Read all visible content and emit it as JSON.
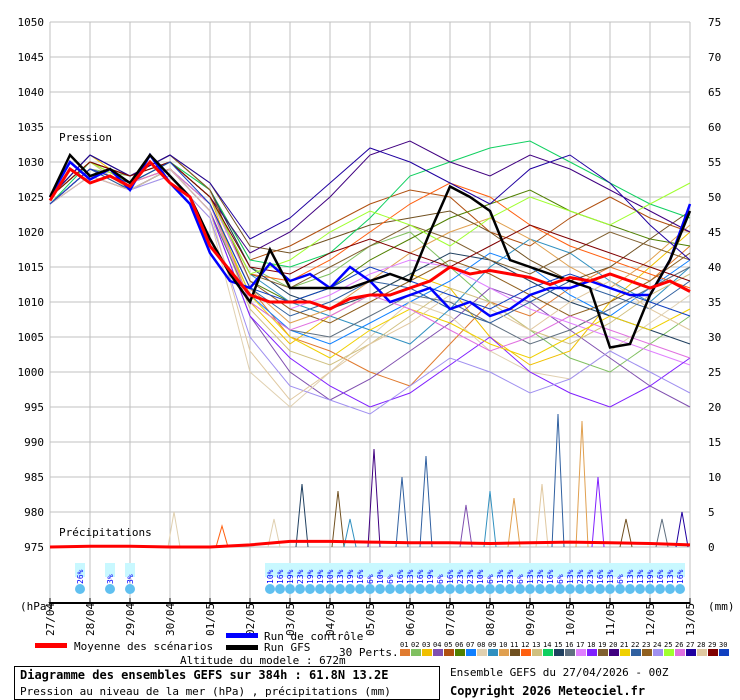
{
  "chart_data": {
    "type": "line",
    "title": "Diagramme des ensembles GEFS sur 384h : 61.8N 13.2E",
    "subtitle": "Pression au niveau de la mer (hPa) , précipitations (mm)",
    "run_label": "Ensemble GEFS du 27/04/2026 - 00Z",
    "copyright": "Copyright 2026 Meteociel.fr",
    "altitude": "Altitude du modele : 672m",
    "ylabel_left": "(hPa)",
    "ylabel_right": "(mm)",
    "label_pressure": "Pression",
    "label_precip": "Précipitations",
    "ylim_left": [
      975,
      1050
    ],
    "ylim_right": [
      0,
      75
    ],
    "left_ticks": [
      1050,
      1045,
      1040,
      1035,
      1030,
      1025,
      1020,
      1015,
      1010,
      1005,
      1000,
      995,
      990,
      985,
      980,
      975
    ],
    "right_ticks": [
      75,
      70,
      65,
      60,
      55,
      50,
      45,
      40,
      35,
      30,
      25,
      20,
      15,
      10,
      5,
      0
    ],
    "x_dates": [
      "27/04",
      "28/04",
      "29/04",
      "30/04",
      "01/05",
      "02/05",
      "03/05",
      "04/05",
      "05/05",
      "06/05",
      "07/05",
      "08/05",
      "09/05",
      "10/05",
      "11/05",
      "12/05",
      "13/05"
    ],
    "legend": {
      "mean": "Moyenne des scénarios",
      "control": "Run de contrôle",
      "gfs": "Run GFS",
      "perts": "30 Perts."
    },
    "colors": {
      "mean": "#ff0000",
      "control": "#0000ff",
      "gfs": "#000000"
    },
    "mean_12h": [
      1024.5,
      1029,
      1027,
      1028,
      1026.5,
      1030,
      1027,
      1025,
      1018,
      1014.5,
      1011,
      1010,
      1010,
      1010,
      1009,
      1010.5,
      1011,
      1011,
      1012,
      1013,
      1015,
      1014,
      1014.5,
      1014,
      1013.5,
      1012.5,
      1013.5,
      1013,
      1014,
      1013,
      1012,
      1013,
      1011.5
    ],
    "control_12h": [
      1025,
      1030,
      1027.5,
      1029,
      1026,
      1031,
      1027,
      1024,
      1017,
      1013,
      1012,
      1015.5,
      1013,
      1014,
      1012,
      1015,
      1013,
      1010,
      1011,
      1012,
      1009,
      1010,
      1008,
      1009,
      1011,
      1012,
      1012,
      1013,
      1012,
      1011,
      1011,
      1016,
      1024
    ],
    "gfs_12h": [
      1025,
      1031,
      1028,
      1029,
      1027,
      1031,
      1028,
      1025,
      1019,
      1014,
      1010,
      1017.5,
      1012,
      1012,
      1012,
      1012,
      1013,
      1014,
      1013,
      1020,
      1026.5,
      1025,
      1023,
      1016,
      1015,
      1014,
      1013,
      1012,
      1003.5,
      1004,
      1011,
      1016,
      1023
    ],
    "pert_colors": [
      "#e07b30",
      "#80c060",
      "#f0c000",
      "#8050b0",
      "#b05010",
      "#508000",
      "#1080ff",
      "#e0d0b0",
      "#3090c0",
      "#e0a050",
      "#705020",
      "#ff6010",
      "#d0c080",
      "#10d060",
      "#204060",
      "#607080",
      "#e080ff",
      "#8020ff",
      "#806030",
      "#400080",
      "#f0d000",
      "#3060a0",
      "#906020",
      "#a090f0",
      "#a0ff30",
      "#e070e0",
      "#2000a0",
      "#e0c8a0",
      "#800000",
      "#1040c0"
    ],
    "pert_ids": [
      "01",
      "02",
      "03",
      "04",
      "05",
      "06",
      "07",
      "08",
      "09",
      "10",
      "11",
      "12",
      "13",
      "14",
      "15",
      "16",
      "17",
      "18",
      "19",
      "20",
      "21",
      "22",
      "23",
      "24",
      "25",
      "26",
      "27",
      "28",
      "29",
      "30"
    ],
    "perts_24h": [
      [
        1025,
        1030,
        1027,
        1029,
        1024,
        1012,
        1005,
        1003,
        1000,
        998,
        1004,
        1010,
        1008,
        1012,
        1015,
        1013,
        1018
      ],
      [
        1024,
        1029,
        1028,
        1030,
        1026,
        1015,
        1012,
        1014,
        1018,
        1020,
        1015,
        1010,
        1006,
        1002,
        1000,
        1004,
        1008
      ],
      [
        1025,
        1031,
        1027,
        1030,
        1025,
        1010,
        1004,
        1008,
        1011,
        1014,
        1012,
        1005,
        1001,
        1003,
        1010,
        1015,
        1020
      ],
      [
        1024,
        1028,
        1026,
        1029,
        1023,
        1008,
        1000,
        996,
        999,
        1003,
        1007,
        1012,
        1010,
        1006,
        1002,
        998,
        995
      ],
      [
        1025,
        1030,
        1028,
        1031,
        1026,
        1016,
        1018,
        1021,
        1024,
        1026,
        1025,
        1020,
        1018,
        1022,
        1025,
        1022,
        1020
      ],
      [
        1024,
        1029,
        1027,
        1030,
        1025,
        1013,
        1010,
        1012,
        1016,
        1019,
        1022,
        1024,
        1026,
        1023,
        1021,
        1019,
        1018
      ],
      [
        1025,
        1030,
        1027,
        1029,
        1024,
        1011,
        1006,
        1004,
        1007,
        1010,
        1013,
        1017,
        1015,
        1011,
        1008,
        1012,
        1016
      ],
      [
        1024,
        1028,
        1026,
        1028,
        1022,
        1000,
        995,
        1000,
        1005,
        1010,
        1008,
        1003,
        1000,
        999,
        1003,
        1007,
        1011
      ],
      [
        1025,
        1031,
        1028,
        1030,
        1025,
        1014,
        1010,
        1008,
        1006,
        1004,
        1009,
        1015,
        1019,
        1017,
        1013,
        1010,
        1015
      ],
      [
        1024,
        1029,
        1027,
        1029,
        1024,
        1012,
        1007,
        1009,
        1013,
        1017,
        1020,
        1022,
        1019,
        1015,
        1012,
        1016,
        1021
      ],
      [
        1025,
        1030,
        1028,
        1031,
        1027,
        1018,
        1017,
        1019,
        1021,
        1022,
        1023,
        1020,
        1016,
        1013,
        1015,
        1019,
        1023
      ],
      [
        1024,
        1029,
        1027,
        1030,
        1025,
        1014,
        1013,
        1016,
        1020,
        1024,
        1027,
        1025,
        1021,
        1018,
        1016,
        1014,
        1012
      ],
      [
        1025,
        1030,
        1026,
        1029,
        1024,
        1009,
        1003,
        1001,
        1004,
        1008,
        1012,
        1010,
        1006,
        1004,
        1007,
        1011,
        1014
      ],
      [
        1024,
        1030,
        1027,
        1030,
        1026,
        1016,
        1015,
        1017,
        1022,
        1028,
        1030,
        1032,
        1033,
        1030,
        1027,
        1024,
        1022
      ],
      [
        1025,
        1031,
        1028,
        1031,
        1026,
        1015,
        1011,
        1009,
        1011,
        1014,
        1017,
        1016,
        1013,
        1010,
        1008,
        1006,
        1004
      ],
      [
        1024,
        1029,
        1026,
        1029,
        1023,
        1010,
        1006,
        1005,
        1008,
        1011,
        1010,
        1007,
        1004,
        1006,
        1009,
        1012,
        1015
      ],
      [
        1025,
        1030,
        1027,
        1030,
        1025,
        1013,
        1009,
        1011,
        1014,
        1016,
        1015,
        1012,
        1009,
        1007,
        1005,
        1003,
        1001
      ],
      [
        1024,
        1028,
        1026,
        1029,
        1023,
        1008,
        1002,
        998,
        995,
        997,
        1001,
        1005,
        1000,
        997,
        995,
        998,
        1002
      ],
      [
        1025,
        1031,
        1028,
        1030,
        1025,
        1014,
        1012,
        1015,
        1018,
        1021,
        1019,
        1016,
        1014,
        1017,
        1020,
        1018,
        1016
      ],
      [
        1024,
        1029,
        1027,
        1030,
        1025,
        1017,
        1020,
        1025,
        1031,
        1033,
        1030,
        1028,
        1031,
        1029,
        1026,
        1023,
        1020
      ],
      [
        1025,
        1030,
        1027,
        1029,
        1024,
        1011,
        1005,
        1002,
        1006,
        1009,
        1007,
        1004,
        1002,
        1005,
        1008,
        1006,
        1009
      ],
      [
        1024,
        1029,
        1026,
        1029,
        1024,
        1012,
        1008,
        1010,
        1013,
        1012,
        1009,
        1007,
        1010,
        1013,
        1011,
        1009,
        1013
      ],
      [
        1025,
        1030,
        1028,
        1031,
        1026,
        1013,
        1009,
        1007,
        1010,
        1013,
        1016,
        1014,
        1011,
        1008,
        1010,
        1013,
        1017
      ],
      [
        1024,
        1028,
        1026,
        1028,
        1022,
        1005,
        998,
        996,
        994,
        998,
        1002,
        1000,
        997,
        999,
        1003,
        1000,
        997
      ],
      [
        1025,
        1030,
        1027,
        1030,
        1025,
        1014,
        1016,
        1020,
        1023,
        1021,
        1018,
        1022,
        1025,
        1023,
        1021,
        1024,
        1027
      ],
      [
        1024,
        1029,
        1027,
        1029,
        1024,
        1010,
        1006,
        1008,
        1011,
        1009,
        1006,
        1003,
        1005,
        1008,
        1006,
        1004,
        1002
      ],
      [
        1025,
        1031,
        1028,
        1031,
        1027,
        1019,
        1022,
        1027,
        1032,
        1030,
        1027,
        1024,
        1029,
        1031,
        1027,
        1021,
        1016
      ],
      [
        1024,
        1028,
        1026,
        1029,
        1023,
        1003,
        996,
        1000,
        1004,
        1007,
        1011,
        1009,
        1006,
        1010,
        1013,
        1009,
        1006
      ],
      [
        1025,
        1030,
        1028,
        1030,
        1025,
        1015,
        1014,
        1017,
        1019,
        1017,
        1015,
        1018,
        1021,
        1019,
        1017,
        1015,
        1013
      ],
      [
        1024,
        1029,
        1027,
        1030,
        1024,
        1012,
        1010,
        1012,
        1015,
        1013,
        1011,
        1009,
        1012,
        1014,
        1012,
        1010,
        1008
      ]
    ],
    "mean_precip_24h": [
      0,
      0.1,
      0.1,
      0,
      0,
      0.3,
      0.8,
      0.8,
      0.7,
      0.6,
      0.6,
      0.5,
      0.6,
      0.7,
      0.6,
      0.5,
      0.3
    ],
    "precip_spikes": [
      {
        "day": 3.1,
        "mm": 5,
        "pert": "08"
      },
      {
        "day": 4.3,
        "mm": 3,
        "pert": "12"
      },
      {
        "day": 5.6,
        "mm": 4,
        "pert": "08"
      },
      {
        "day": 6.3,
        "mm": 9,
        "pert": "15"
      },
      {
        "day": 7.2,
        "mm": 8,
        "pert": "11"
      },
      {
        "day": 7.5,
        "mm": 4,
        "pert": "09"
      },
      {
        "day": 8.1,
        "mm": 14,
        "pert": "20"
      },
      {
        "day": 8.8,
        "mm": 10,
        "pert": "22"
      },
      {
        "day": 9.4,
        "mm": 13,
        "pert": "22"
      },
      {
        "day": 10.4,
        "mm": 6,
        "pert": "04"
      },
      {
        "day": 11.0,
        "mm": 8,
        "pert": "09"
      },
      {
        "day": 11.6,
        "mm": 7,
        "pert": "10"
      },
      {
        "day": 12.3,
        "mm": 9,
        "pert": "28"
      },
      {
        "day": 12.7,
        "mm": 19,
        "pert": "22"
      },
      {
        "day": 13.3,
        "mm": 18,
        "pert": "10"
      },
      {
        "day": 13.7,
        "mm": 10,
        "pert": "18"
      },
      {
        "day": 14.4,
        "mm": 4,
        "pert": "11"
      },
      {
        "day": 15.3,
        "mm": 4,
        "pert": "16"
      },
      {
        "day": 15.8,
        "mm": 5,
        "pert": "27"
      }
    ],
    "snow": {
      "hours": [
        18,
        36,
        48
      ],
      "pct": [
        "26%",
        "3%",
        "3%"
      ],
      "start_6h": 132,
      "pct_6h": [
        "10%",
        "16%",
        "19%",
        "23%",
        "19%",
        "19%",
        "10%",
        "13%",
        "19%",
        "16%",
        "6%",
        "10%",
        "6%",
        "16%",
        "13%",
        "16%",
        "19%",
        "6%",
        "16%",
        "23%",
        "23%",
        "10%",
        "6%",
        "13%",
        "23%",
        "6%",
        "13%",
        "23%",
        "16%",
        "6%",
        "13%",
        "23%",
        "23%",
        "16%",
        "13%",
        "6%",
        "13%",
        "13%",
        "19%",
        "16%",
        "13%",
        "16%"
      ]
    }
  }
}
